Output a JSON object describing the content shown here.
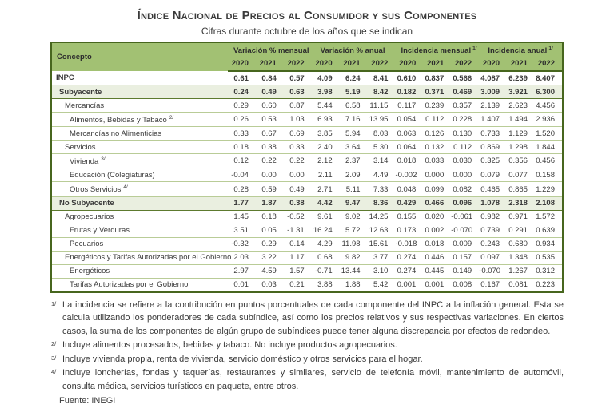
{
  "title": "Índice Nacional de Precios al Consumidor y sus Componentes",
  "subtitle": "Cifras durante octubre de los años que se indican",
  "colors": {
    "header_green": "#a2c173",
    "border_dark_green": "#47661e",
    "highlight_row_bg": "#eaefe0",
    "highlight_row_border": "#5d7a2e",
    "row_divider": "#b9cc97",
    "text": "#3b3b3b"
  },
  "table": {
    "concept_header": "Concepto",
    "groups": [
      {
        "label": "Variación % mensual",
        "sup": ""
      },
      {
        "label": "Variación % anual",
        "sup": ""
      },
      {
        "label": "Incidencia mensual",
        "sup": "1/"
      },
      {
        "label": "Incidencia anual",
        "sup": "1/"
      }
    ],
    "years": [
      "2020",
      "2021",
      "2022"
    ],
    "rows": [
      {
        "concept": "INPC",
        "sup": "",
        "indent": 0,
        "bold": true,
        "highlight": false,
        "values": [
          "0.61",
          "0.84",
          "0.57",
          "4.09",
          "6.24",
          "8.41",
          "0.610",
          "0.837",
          "0.566",
          "4.087",
          "6.239",
          "8.407"
        ]
      },
      {
        "concept": "Subyacente",
        "sup": "",
        "indent": 1,
        "bold": true,
        "highlight": true,
        "values": [
          "0.24",
          "0.49",
          "0.63",
          "3.98",
          "5.19",
          "8.42",
          "0.182",
          "0.371",
          "0.469",
          "3.009",
          "3.921",
          "6.300"
        ]
      },
      {
        "concept": "Mercancías",
        "sup": "",
        "indent": 2,
        "bold": false,
        "highlight": false,
        "values": [
          "0.29",
          "0.60",
          "0.87",
          "5.44",
          "6.58",
          "11.15",
          "0.117",
          "0.239",
          "0.357",
          "2.139",
          "2.623",
          "4.456"
        ]
      },
      {
        "concept": "Alimentos, Bebidas y Tabaco",
        "sup": "2/",
        "indent": 3,
        "bold": false,
        "highlight": false,
        "values": [
          "0.26",
          "0.53",
          "1.03",
          "6.93",
          "7.16",
          "13.95",
          "0.054",
          "0.112",
          "0.228",
          "1.407",
          "1.494",
          "2.936"
        ]
      },
      {
        "concept": "Mercancías no Alimenticias",
        "sup": "",
        "indent": 3,
        "bold": false,
        "highlight": false,
        "values": [
          "0.33",
          "0.67",
          "0.69",
          "3.85",
          "5.94",
          "8.03",
          "0.063",
          "0.126",
          "0.130",
          "0.733",
          "1.129",
          "1.520"
        ]
      },
      {
        "concept": "Servicios",
        "sup": "",
        "indent": 2,
        "bold": false,
        "highlight": false,
        "values": [
          "0.18",
          "0.38",
          "0.33",
          "2.40",
          "3.64",
          "5.30",
          "0.064",
          "0.132",
          "0.112",
          "0.869",
          "1.298",
          "1.844"
        ]
      },
      {
        "concept": "Vivienda",
        "sup": "3/",
        "indent": 3,
        "bold": false,
        "highlight": false,
        "values": [
          "0.12",
          "0.22",
          "0.22",
          "2.12",
          "2.37",
          "3.14",
          "0.018",
          "0.033",
          "0.030",
          "0.325",
          "0.356",
          "0.456"
        ]
      },
      {
        "concept": "Educación (Colegiaturas)",
        "sup": "",
        "indent": 3,
        "bold": false,
        "highlight": false,
        "values": [
          "-0.04",
          "0.00",
          "0.00",
          "2.11",
          "2.09",
          "4.49",
          "-0.002",
          "0.000",
          "0.000",
          "0.079",
          "0.077",
          "0.158"
        ]
      },
      {
        "concept": "Otros Servicios",
        "sup": "4/",
        "indent": 3,
        "bold": false,
        "highlight": false,
        "values": [
          "0.28",
          "0.59",
          "0.49",
          "2.71",
          "5.11",
          "7.33",
          "0.048",
          "0.099",
          "0.082",
          "0.465",
          "0.865",
          "1.229"
        ]
      },
      {
        "concept": "No Subyacente",
        "sup": "",
        "indent": 1,
        "bold": true,
        "highlight": true,
        "values": [
          "1.77",
          "1.87",
          "0.38",
          "4.42",
          "9.47",
          "8.36",
          "0.429",
          "0.466",
          "0.096",
          "1.078",
          "2.318",
          "2.108"
        ]
      },
      {
        "concept": "Agropecuarios",
        "sup": "",
        "indent": 2,
        "bold": false,
        "highlight": false,
        "values": [
          "1.45",
          "0.18",
          "-0.52",
          "9.61",
          "9.02",
          "14.25",
          "0.155",
          "0.020",
          "-0.061",
          "0.982",
          "0.971",
          "1.572"
        ]
      },
      {
        "concept": "Frutas y Verduras",
        "sup": "",
        "indent": 3,
        "bold": false,
        "highlight": false,
        "values": [
          "3.51",
          "0.05",
          "-1.31",
          "16.24",
          "5.72",
          "12.63",
          "0.173",
          "0.002",
          "-0.070",
          "0.739",
          "0.291",
          "0.639"
        ]
      },
      {
        "concept": "Pecuarios",
        "sup": "",
        "indent": 3,
        "bold": false,
        "highlight": false,
        "values": [
          "-0.32",
          "0.29",
          "0.14",
          "4.29",
          "11.98",
          "15.61",
          "-0.018",
          "0.018",
          "0.009",
          "0.243",
          "0.680",
          "0.934"
        ]
      },
      {
        "concept": "Energéticos y Tarifas Autorizadas por el Gobierno",
        "sup": "",
        "indent": 2,
        "bold": false,
        "highlight": false,
        "values": [
          "2.03",
          "3.22",
          "1.17",
          "0.68",
          "9.82",
          "3.77",
          "0.274",
          "0.446",
          "0.157",
          "0.097",
          "1.348",
          "0.535"
        ]
      },
      {
        "concept": "Energéticos",
        "sup": "",
        "indent": 3,
        "bold": false,
        "highlight": false,
        "values": [
          "2.97",
          "4.59",
          "1.57",
          "-0.71",
          "13.44",
          "3.10",
          "0.274",
          "0.445",
          "0.149",
          "-0.070",
          "1.267",
          "0.312"
        ]
      },
      {
        "concept": "Tarifas Autorizadas por el Gobierno",
        "sup": "",
        "indent": 3,
        "bold": false,
        "highlight": false,
        "values": [
          "0.01",
          "0.03",
          "0.21",
          "3.88",
          "1.88",
          "5.42",
          "0.001",
          "0.001",
          "0.008",
          "0.167",
          "0.081",
          "0.223"
        ]
      }
    ]
  },
  "footnotes": [
    {
      "marker": "1/",
      "text": "La incidencia se refiere a la contribución en puntos porcentuales de cada componente del INPC a la inflación general. Esta se calcula utilizando los ponderadores de cada subíndice, así como los precios relativos y sus respectivas variaciones. En ciertos casos, la suma de los componentes de algún grupo de subíndices puede tener alguna discrepancia por efectos de redondeo."
    },
    {
      "marker": "2/",
      "text": "Incluye alimentos procesados, bebidas y tabaco. No incluye productos agropecuarios."
    },
    {
      "marker": "3/",
      "text": "Incluye vivienda propia, renta de vivienda, servicio doméstico y otros servicios para el hogar."
    },
    {
      "marker": "4/",
      "text": "Incluye loncherías, fondas y taquerías, restaurantes y similares, servicio de telefonía móvil, mantenimiento de automóvil, consulta médica, servicios turísticos en paquete, entre otros."
    }
  ],
  "source": "Fuente: INEGI"
}
